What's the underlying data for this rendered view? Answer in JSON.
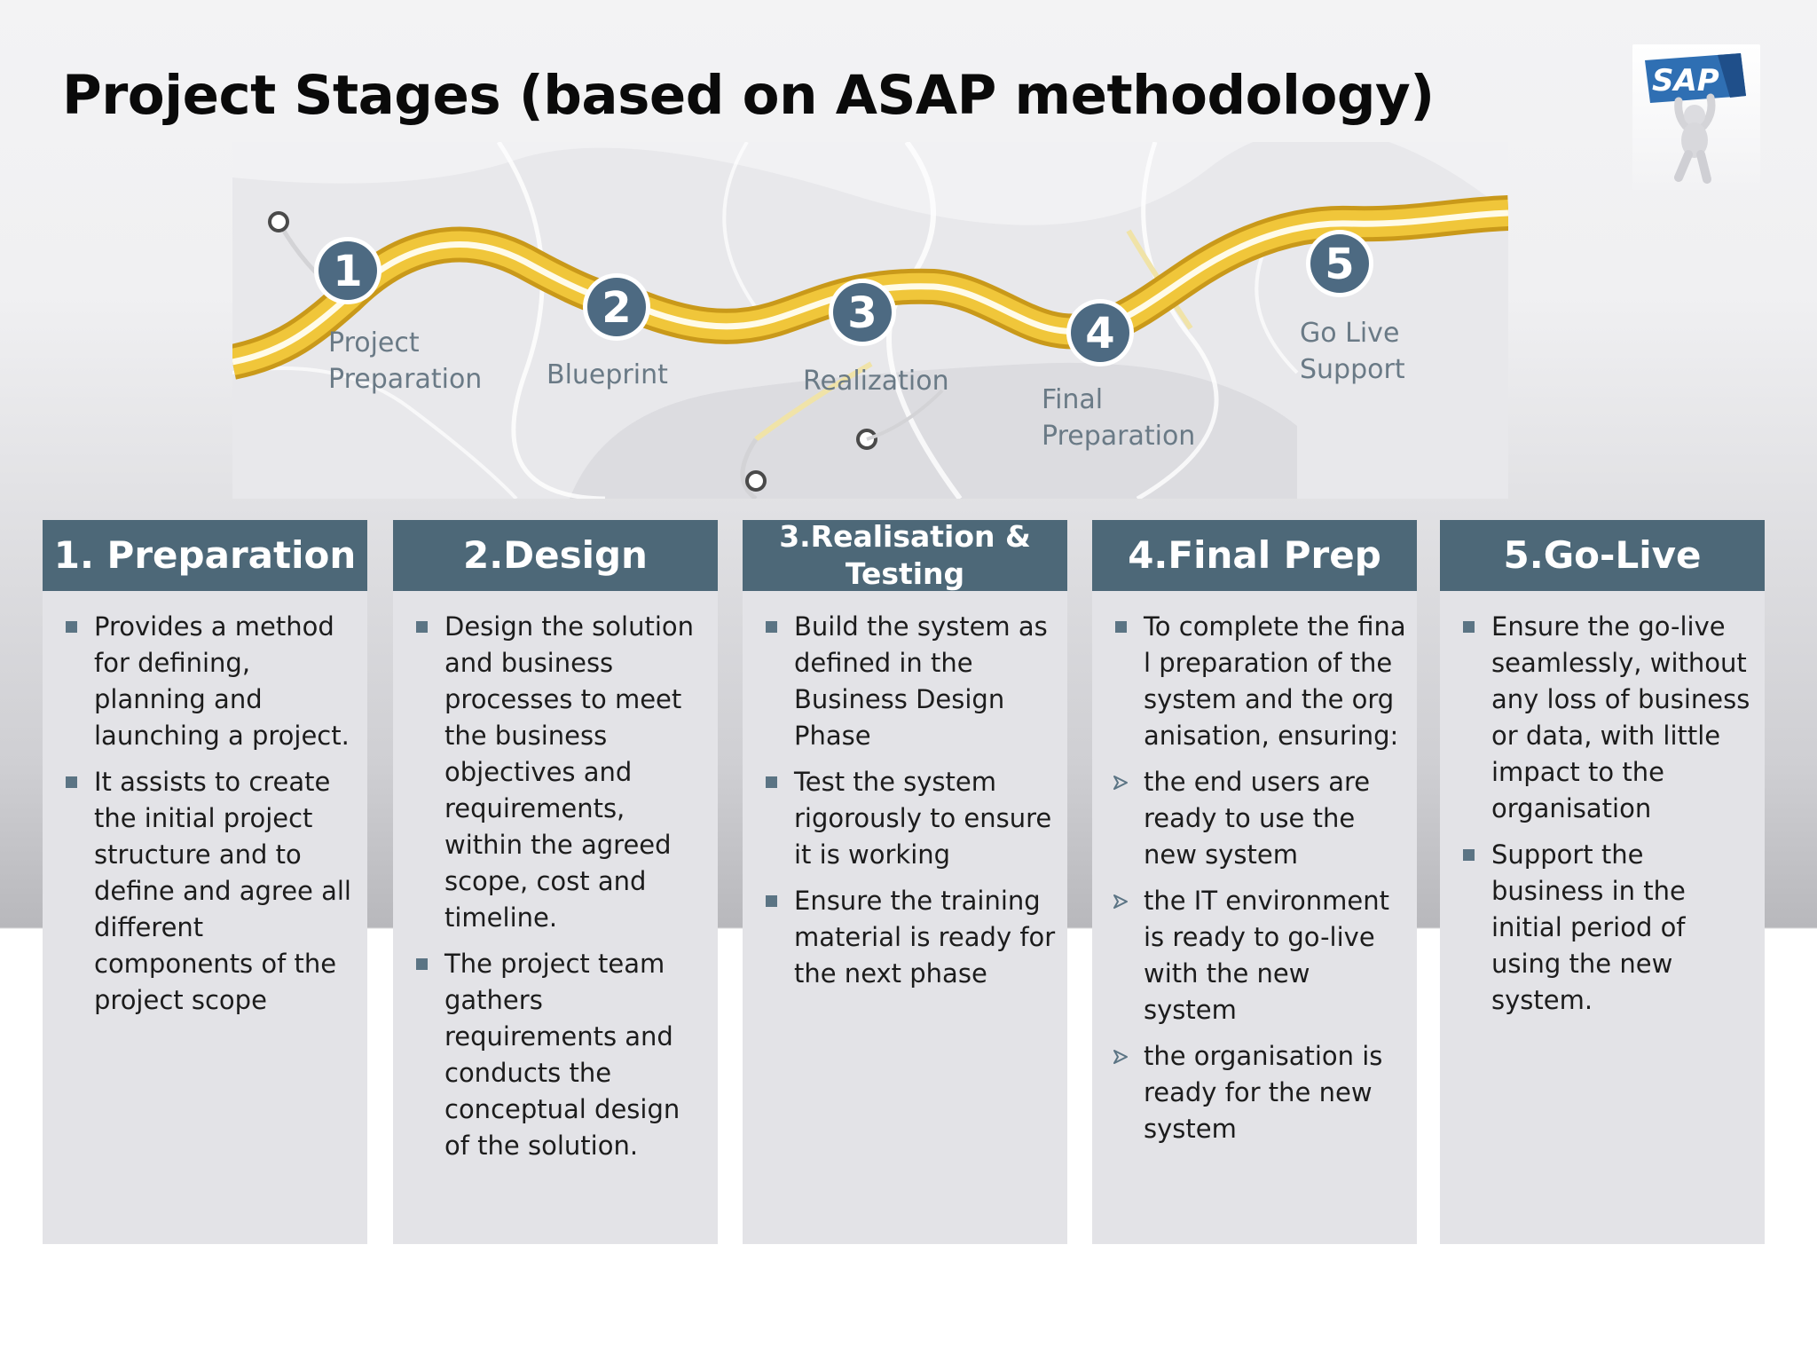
{
  "page": {
    "title": "Project Stages (based on ASAP methodology)"
  },
  "logo": {
    "text": "SAP",
    "icon": "sap-figure-holding-sign-icon"
  },
  "roadmap": {
    "stages": [
      {
        "number": "1",
        "label_line1": "Project",
        "label_line2": "Preparation"
      },
      {
        "number": "2",
        "label_line1": "Blueprint",
        "label_line2": ""
      },
      {
        "number": "3",
        "label_line1": "Realization",
        "label_line2": ""
      },
      {
        "number": "4",
        "label_line1": "Final",
        "label_line2": "Preparation"
      },
      {
        "number": "5",
        "label_line1": "Go Live",
        "label_line2": "Support"
      }
    ]
  },
  "colors": {
    "header_bg": "#4d6878",
    "column_bg": "#e3e3e7",
    "bullet": "#5b7484",
    "road_yellow": "#e8b923",
    "stage_circle": "#4d6a82"
  },
  "columns": [
    {
      "header": "1. Preparation",
      "items": [
        {
          "type": "square",
          "text": "Provides a method for defining, planning and launching a project."
        },
        {
          "type": "square",
          "text": "It assists to create the initial project structure and to define and agree all different components of the project scope"
        }
      ]
    },
    {
      "header": "2.Design",
      "items": [
        {
          "type": "square",
          "text": "Design the solution and business processes to meet the business objectives and requirements, within the agreed scope, cost and timeline."
        },
        {
          "type": "square",
          "text": "The project team gathers requirements and conducts the conceptual design of the solution."
        }
      ]
    },
    {
      "header": "3.Realisation & Testing",
      "items": [
        {
          "type": "square",
          "text": "Build the system as defined in the Business Design Phase"
        },
        {
          "type": "square",
          "text": "Test the system rigorously to ensure it is working"
        },
        {
          "type": "square",
          "text": "Ensure the training material is ready for the next phase"
        }
      ]
    },
    {
      "header": "4.Final Prep",
      "items": [
        {
          "type": "square",
          "text": "To complete the final preparation of the system and the organisation, ensuring:"
        },
        {
          "type": "arrow",
          "text": "the end users are ready to use the new system"
        },
        {
          "type": "arrow",
          "text": "the IT environment is ready to go-live with the new system"
        },
        {
          "type": "arrow",
          "text": "the organisation is ready for the new system"
        }
      ]
    },
    {
      "header": "5.Go-Live",
      "items": [
        {
          "type": "square",
          "text": "Ensure the go-live seamlessly, without any loss of business or data, with little impact to the organisation"
        },
        {
          "type": "square",
          "text": "Support the business in the initial period of using the new system."
        }
      ]
    }
  ]
}
